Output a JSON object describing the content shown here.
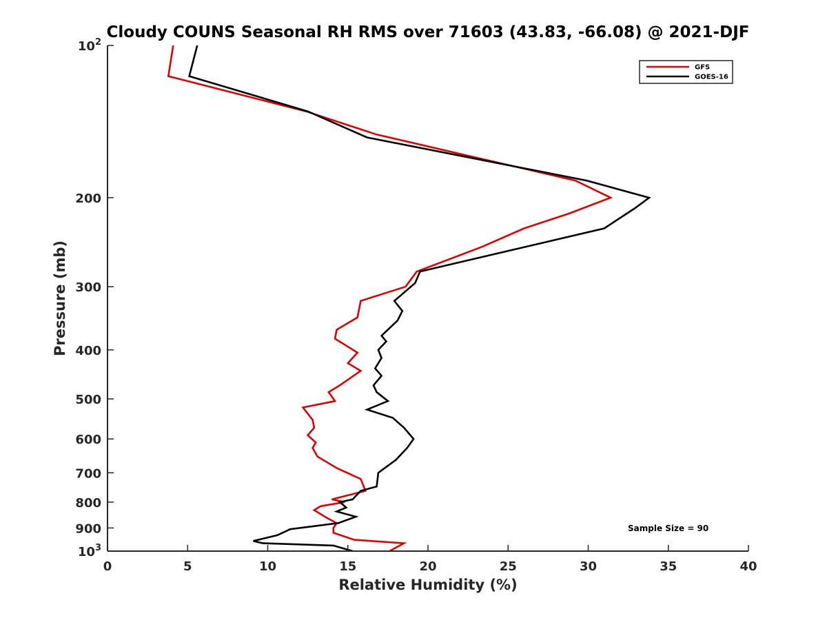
{
  "chart_data": {
    "type": "line",
    "title": "Cloudy COUNS Seasonal RH RMS over 71603 (43.83, -66.08) @ 2021-DJF",
    "xlabel": "Relative Humidity (%)",
    "ylabel": "Pressure (mb)",
    "xlim": [
      0,
      40
    ],
    "ylim": [
      100,
      1000
    ],
    "yscale": "log",
    "y_reversed": true,
    "x_ticks": [
      {
        "value": 0,
        "label": "0"
      },
      {
        "value": 5,
        "label": "5"
      },
      {
        "value": 10,
        "label": "10"
      },
      {
        "value": 15,
        "label": "15"
      },
      {
        "value": 20,
        "label": "20"
      },
      {
        "value": 25,
        "label": "25"
      },
      {
        "value": 30,
        "label": "30"
      },
      {
        "value": 35,
        "label": "35"
      },
      {
        "value": 40,
        "label": "40"
      }
    ],
    "y_ticks": [
      {
        "value": 100,
        "base": "10",
        "exp": "2"
      },
      {
        "value": 200,
        "label": "200"
      },
      {
        "value": 300,
        "label": "300"
      },
      {
        "value": 400,
        "label": "400"
      },
      {
        "value": 500,
        "label": "500"
      },
      {
        "value": 600,
        "label": "600"
      },
      {
        "value": 700,
        "label": "700"
      },
      {
        "value": 800,
        "label": "800"
      },
      {
        "value": 900,
        "label": "900"
      },
      {
        "value": 1000,
        "base": "10",
        "exp": "3"
      }
    ],
    "legend_position": "top-right",
    "annotation": "Sample Size = 90",
    "series": [
      {
        "name": "GFS",
        "color": "#e00000",
        "points": [
          [
            4.1,
            100
          ],
          [
            3.8,
            115
          ],
          [
            12.4,
            135
          ],
          [
            16.8,
            150
          ],
          [
            29.2,
            185
          ],
          [
            31.4,
            200
          ],
          [
            28.8,
            215
          ],
          [
            26.0,
            230
          ],
          [
            23.4,
            250
          ],
          [
            19.3,
            280
          ],
          [
            18.6,
            300
          ],
          [
            15.8,
            320
          ],
          [
            15.6,
            345
          ],
          [
            14.3,
            365
          ],
          [
            14.2,
            380
          ],
          [
            15.6,
            405
          ],
          [
            15.0,
            425
          ],
          [
            15.8,
            440
          ],
          [
            14.5,
            470
          ],
          [
            13.8,
            485
          ],
          [
            14.2,
            505
          ],
          [
            12.2,
            520
          ],
          [
            12.8,
            550
          ],
          [
            12.9,
            570
          ],
          [
            12.5,
            590
          ],
          [
            13.0,
            610
          ],
          [
            12.8,
            625
          ],
          [
            13.1,
            650
          ],
          [
            14.3,
            685
          ],
          [
            15.8,
            720
          ],
          [
            16.1,
            760
          ],
          [
            14.0,
            790
          ],
          [
            14.8,
            800
          ],
          [
            13.3,
            815
          ],
          [
            12.9,
            830
          ],
          [
            13.7,
            860
          ],
          [
            14.3,
            880
          ],
          [
            14.1,
            900
          ],
          [
            14.1,
            920
          ],
          [
            15.4,
            950
          ],
          [
            18.5,
            965
          ],
          [
            17.6,
            1000
          ]
        ]
      },
      {
        "name": "GOES-16",
        "color": "#000000",
        "points": [
          [
            5.6,
            100
          ],
          [
            5.1,
            115
          ],
          [
            12.5,
            135
          ],
          [
            16.2,
            152
          ],
          [
            29.9,
            185
          ],
          [
            33.8,
            200
          ],
          [
            32.9,
            210
          ],
          [
            31.0,
            230
          ],
          [
            19.5,
            280
          ],
          [
            19.2,
            295
          ],
          [
            17.9,
            320
          ],
          [
            18.4,
            335
          ],
          [
            18.1,
            350
          ],
          [
            17.1,
            375
          ],
          [
            17.4,
            385
          ],
          [
            16.9,
            400
          ],
          [
            17.1,
            415
          ],
          [
            16.7,
            435
          ],
          [
            17.1,
            450
          ],
          [
            16.6,
            470
          ],
          [
            16.8,
            485
          ],
          [
            17.5,
            505
          ],
          [
            16.2,
            525
          ],
          [
            17.8,
            545
          ],
          [
            18.5,
            570
          ],
          [
            19.1,
            600
          ],
          [
            18.7,
            625
          ],
          [
            18.0,
            660
          ],
          [
            16.9,
            700
          ],
          [
            16.8,
            745
          ],
          [
            15.8,
            760
          ],
          [
            15.3,
            790
          ],
          [
            14.5,
            800
          ],
          [
            14.9,
            820
          ],
          [
            14.3,
            835
          ],
          [
            15.5,
            855
          ],
          [
            14.4,
            880
          ],
          [
            11.4,
            905
          ],
          [
            10.6,
            930
          ],
          [
            9.1,
            955
          ],
          [
            9.7,
            965
          ],
          [
            14.1,
            975
          ],
          [
            15.3,
            1000
          ]
        ]
      }
    ]
  }
}
